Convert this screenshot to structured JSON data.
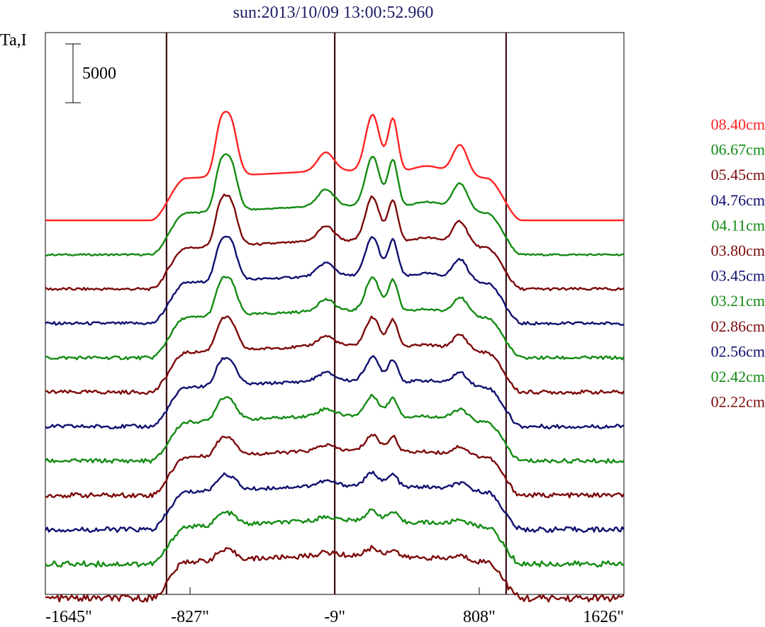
{
  "chart_data": {
    "type": "line",
    "title": "sun:2013/10/09 13:00:52.960",
    "ylabel": "Ta,I",
    "scale_bar_label": "5000",
    "scale_bar_value": 5000,
    "x_tick_labels": [
      "-1645\"",
      "-827\"",
      "-9\"",
      "808\"",
      "1626\""
    ],
    "x_ticks": [
      -1645,
      -827,
      -9,
      808,
      1626
    ],
    "xlim": [
      -1645,
      1626
    ],
    "limb_lines_arcsec": [
      -960,
      -9,
      960
    ],
    "series": [
      {
        "name": "08.40cm",
        "color": "#ff2222",
        "baseline": 1,
        "amp": 1.0,
        "noise": 0.0
      },
      {
        "name": "06.67cm",
        "color": "#138b13",
        "baseline": 2,
        "amp": 0.95,
        "noise": 0.12
      },
      {
        "name": "05.45cm",
        "color": "#7c0a0a",
        "baseline": 3,
        "amp": 0.92,
        "noise": 0.2
      },
      {
        "name": "04.76cm",
        "color": "#101070",
        "baseline": 4,
        "amp": 0.88,
        "noise": 0.22
      },
      {
        "name": "04.11cm",
        "color": "#138b13",
        "baseline": 5,
        "amp": 0.83,
        "noise": 0.25
      },
      {
        "name": "03.80cm",
        "color": "#7c0a0a",
        "baseline": 6,
        "amp": 0.78,
        "noise": 0.28
      },
      {
        "name": "03.45cm",
        "color": "#101070",
        "baseline": 7,
        "amp": 0.72,
        "noise": 0.3
      },
      {
        "name": "03.21cm",
        "color": "#138b13",
        "baseline": 8,
        "amp": 0.68,
        "noise": 0.32
      },
      {
        "name": "02.86cm",
        "color": "#7c0a0a",
        "baseline": 9,
        "amp": 0.62,
        "noise": 0.36
      },
      {
        "name": "02.56cm",
        "color": "#101070",
        "baseline": 10,
        "amp": 0.58,
        "noise": 0.4
      },
      {
        "name": "02.42cm",
        "color": "#138b13",
        "baseline": 11,
        "amp": 0.54,
        "noise": 0.45
      },
      {
        "name": "02.22cm",
        "color": "#7c0a0a",
        "baseline": 12,
        "amp": 0.5,
        "noise": 0.55
      }
    ]
  }
}
